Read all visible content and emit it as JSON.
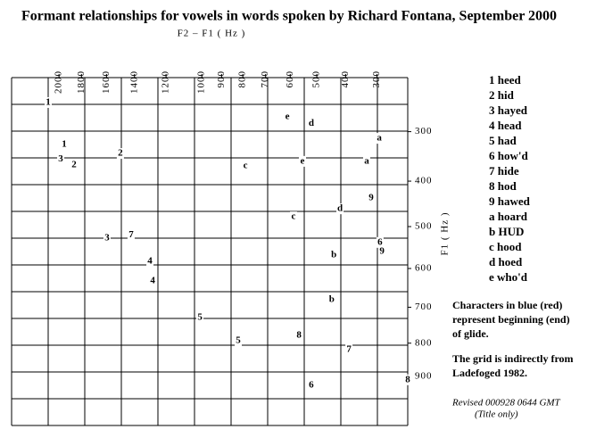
{
  "chart_data": {
    "type": "scatter",
    "title": "Formant relationships for vowels in words spoken by Richard Fontana, September 2000",
    "x_label": "F2 – F1 ( Hz )",
    "y_label": "F1 ( Hz )",
    "scale": "bark",
    "xlim": [
      2500,
      210
    ],
    "ylim": [
      200,
      1060
    ],
    "xticks": [
      2000,
      1800,
      1600,
      1400,
      1200,
      1000,
      900,
      800,
      700,
      600,
      500,
      400,
      300
    ],
    "yticks": [
      300,
      400,
      500,
      600,
      700,
      800,
      900
    ],
    "grid": true,
    "series": [
      {
        "color": "#cc0000",
        "labels": [
          "1",
          "e",
          "d",
          "a",
          "3",
          "2",
          "c",
          "9",
          "7",
          "6",
          "b",
          "4",
          "5",
          "8"
        ],
        "x": [
          2104,
          611,
          520,
          293,
          1984,
          1498,
          788,
          318,
          1423,
          291,
          440,
          1299,
          1010,
          566
        ],
        "values": [
          245,
          272,
          284,
          313,
          355,
          343,
          368,
          436,
          519,
          537,
          567,
          582,
          728,
          778
        ]
      },
      {
        "color": "#0000cc",
        "labels": [
          "1",
          "2",
          "a",
          "e",
          "d",
          "c",
          "3",
          "9",
          "4",
          "b",
          "5",
          "7",
          "8",
          "6"
        ],
        "x": [
          1951,
          1864,
          332,
          553,
          419,
          587,
          1596,
          285,
          1282,
          447,
          821,
          389,
          210,
          520
        ],
        "values": [
          325,
          366,
          359,
          359,
          460,
          478,
          527,
          559,
          631,
          680,
          793,
          819,
          910,
          927
        ]
      }
    ],
    "key": [
      "1 heed",
      "2 hid",
      "3 hayed",
      "4 head",
      "5 had",
      "6 how'd",
      "7 hide",
      "8 hod",
      "9 hawed",
      "a hoard",
      "b HUD",
      "c hood",
      "d hoed",
      "e who'd"
    ],
    "notes": [
      [
        "Characters in blue (red)",
        "represent beginning (end)",
        "of glide."
      ],
      [
        "The grid is indirectly from",
        "Ladefoged 1982."
      ]
    ],
    "revised": [
      "Revised 000928 0644 GMT",
      "(Title only)"
    ]
  }
}
